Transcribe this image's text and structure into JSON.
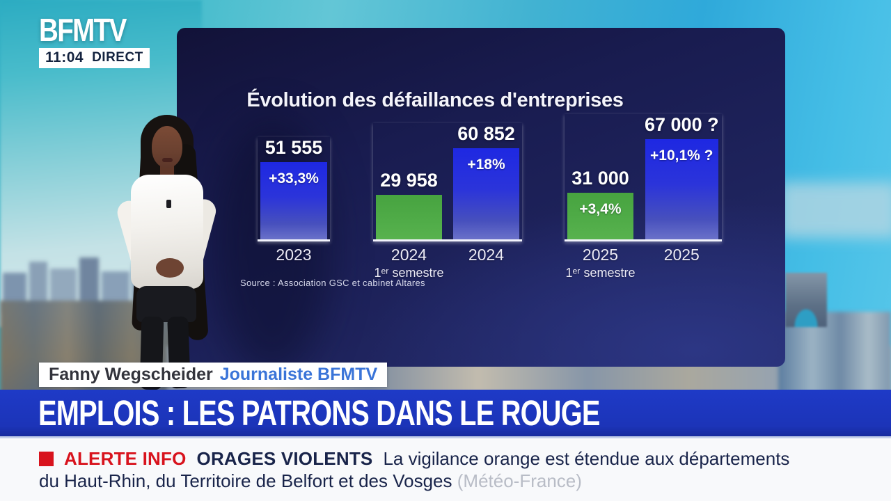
{
  "header": {
    "logo": "BFMTV",
    "time": "11:04",
    "live": "DIRECT"
  },
  "chart_data": {
    "type": "bar",
    "title": "Évolution des défaillances d'entreprises",
    "source": "Source : Association GSC et cabinet Altares",
    "legend": "off",
    "grid": "off",
    "bar_colors": {
      "blue": "#252ee0",
      "green": "#4aa43f"
    },
    "groups": [
      {
        "bars": [
          {
            "year": "2023",
            "semester": "",
            "value": 51555,
            "display_value": "51 555",
            "delta": "+33,3%",
            "color": "blue"
          }
        ]
      },
      {
        "bars": [
          {
            "year": "2024",
            "semester": "1ᵉʳ semestre",
            "value": 29958,
            "display_value": "29 958",
            "delta": "",
            "color": "green"
          },
          {
            "year": "2024",
            "semester": "",
            "value": 60852,
            "display_value": "60 852",
            "delta": "+18%",
            "color": "blue"
          }
        ]
      },
      {
        "bars": [
          {
            "year": "2025",
            "semester": "1ᵉʳ semestre",
            "value": 31000,
            "display_value": "31 000",
            "delta": "+3,4%",
            "color": "green"
          },
          {
            "year": "2025",
            "semester": "",
            "value": 67000,
            "display_value": "67 000 ?",
            "delta": "+10,1% ?",
            "color": "blue"
          }
        ]
      }
    ]
  },
  "lower_third": {
    "name": "Fanny Wegscheider",
    "role": "Journaliste BFMTV"
  },
  "headline": "EMPLOIS : LES PATRONS DANS LE ROUGE",
  "alert": {
    "tag": "ALERTE INFO",
    "topic": "ORAGES VIOLENTS",
    "line1": "La vigilance orange est étendue aux départements",
    "line2": "du Haut-Rhin, du Territoire de Belfort et des Vosges ",
    "attribution": "(Météo-France)"
  },
  "colors": {
    "headline_bg": "#1c36bf",
    "alert_red": "#d8131d",
    "panel_navy": "#1c2058",
    "text_navy": "#19244a",
    "role_blue": "#3a74d8"
  }
}
